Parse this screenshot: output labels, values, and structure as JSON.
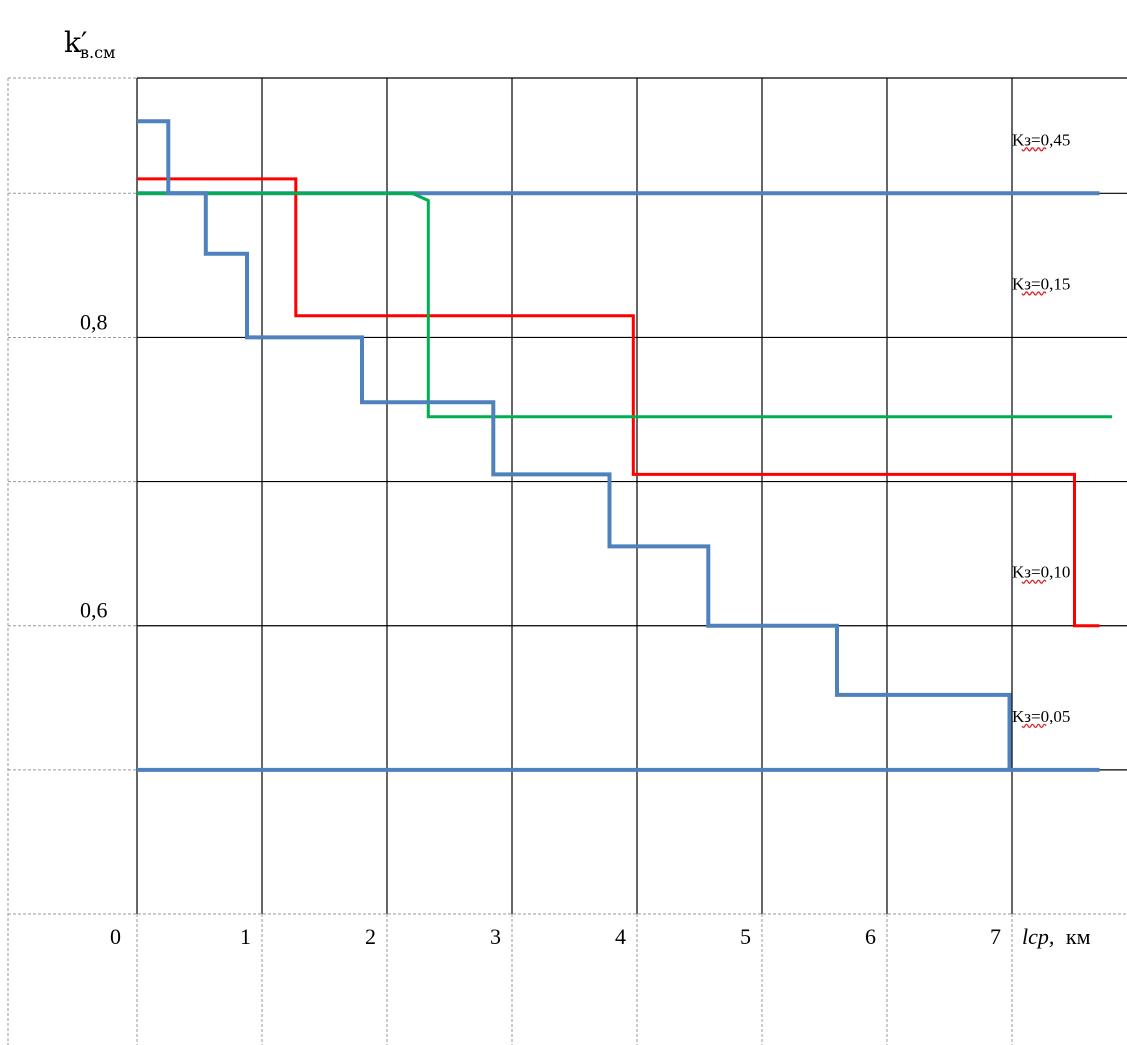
{
  "chart_data": {
    "type": "line",
    "step": true,
    "title": "",
    "ylabel": "k′в.см",
    "ylabel_main": "k′",
    "ylabel_sub": "в.см",
    "xlabel": "lср, км",
    "xlabel_var": "lср,",
    "xlabel_unit": "км",
    "xlim": [
      0,
      7.7
    ],
    "ylim": [
      0.4,
      0.98
    ],
    "x_ticks": [
      "0",
      "1",
      "2",
      "3",
      "4",
      "5",
      "6",
      "7"
    ],
    "y_tick_labels": [
      {
        "y": 0.8,
        "label": "0,8"
      },
      {
        "y": 0.6,
        "label": "0,6"
      }
    ],
    "grid": true,
    "legend": "none",
    "curve_labels": [
      {
        "text": "Kз=0,45",
        "y": 0.9,
        "color": "#4f81bd"
      },
      {
        "text": "Kз=0,15",
        "y": 0.8,
        "color": "#ff0000"
      },
      {
        "text": "Kз=0,10",
        "y": 0.6,
        "color": "#00b050"
      },
      {
        "text": "Kз=0,05",
        "y": 0.5,
        "color": "#4f81bd"
      }
    ],
    "series": [
      {
        "color": "#4f81bd",
        "width": 4,
        "x": [
          0,
          7.7
        ],
        "y": [
          0.9,
          0.9
        ]
      },
      {
        "color": "#ff0000",
        "width": 3,
        "x": [
          0,
          1.2,
          1.27,
          1.27,
          3.9,
          3.97,
          3.97,
          7.4,
          7.5,
          7.5,
          7.7
        ],
        "y": [
          0.91,
          0.91,
          0.91,
          0.815,
          0.815,
          0.815,
          0.705,
          0.705,
          0.705,
          0.6,
          0.6
        ]
      },
      {
        "color": "#00b050",
        "width": 3,
        "x": [
          0,
          2.2,
          2.33,
          2.33,
          7.8
        ],
        "y": [
          0.9,
          0.9,
          0.895,
          0.745,
          0.745
        ]
      },
      {
        "color": "#4f81bd",
        "width": 4,
        "x": [
          0,
          0.25,
          0.25,
          0.55,
          0.55,
          0.88,
          0.88,
          1.8,
          1.8,
          2.85,
          2.85,
          3.78,
          3.78,
          4.57,
          4.57,
          5.6,
          5.6,
          6.98,
          6.98
        ],
        "y": [
          0.95,
          0.95,
          0.9,
          0.9,
          0.858,
          0.858,
          0.8,
          0.8,
          0.755,
          0.755,
          0.705,
          0.705,
          0.655,
          0.655,
          0.6,
          0.6,
          0.552,
          0.552,
          0.5
        ]
      },
      {
        "color": "#4f81bd",
        "width": 4,
        "x": [
          0,
          7.7
        ],
        "y": [
          0.5,
          0.5
        ]
      }
    ]
  }
}
